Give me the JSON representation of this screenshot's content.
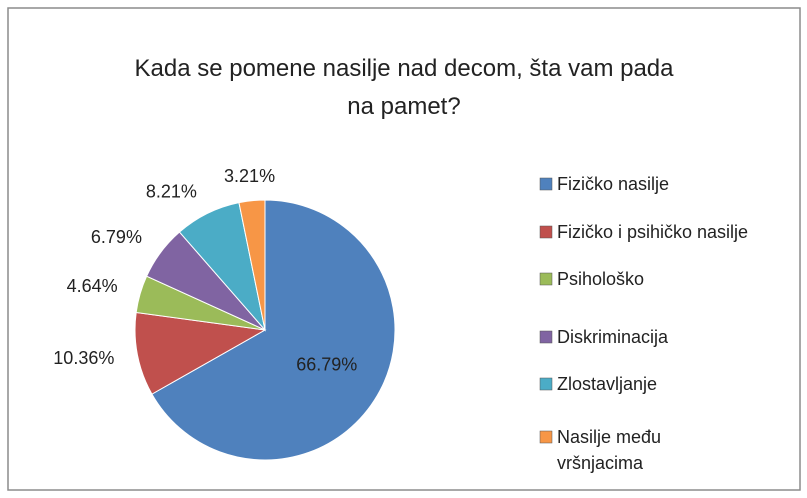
{
  "chart_data": {
    "type": "pie",
    "title": "Kada se pomene nasilje nad decom, šta vam pada na pamet?",
    "categories": [
      "Fizičko nasilje",
      "Fizičko i psihičko nasilje",
      "Psihološko",
      "Diskriminacija",
      "Zlostavljanje",
      "Nasilje među vršnjacima"
    ],
    "values": [
      66.79,
      10.36,
      4.64,
      6.79,
      8.21,
      3.21
    ],
    "value_labels": [
      "66.79%",
      "10.36%",
      "4.64%",
      "6.79%",
      "8.21%",
      "3.21%"
    ],
    "colors": [
      "#4f81bd",
      "#c0504d",
      "#9bbb59",
      "#8064a2",
      "#4bacc6",
      "#f79646"
    ],
    "legend": "right"
  }
}
